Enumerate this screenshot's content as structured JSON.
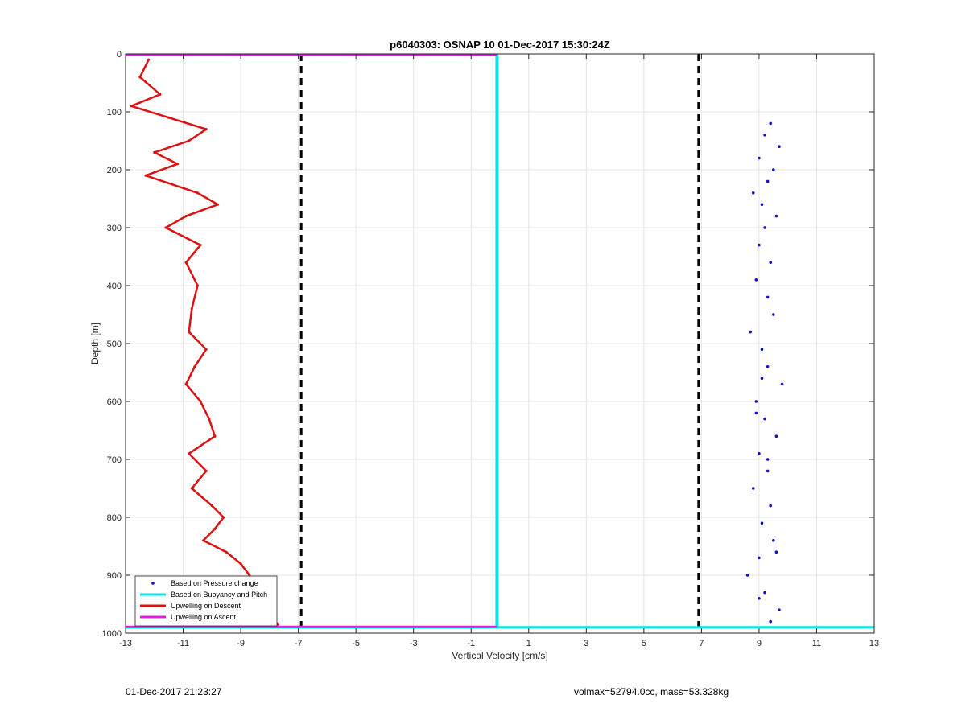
{
  "chart_data": {
    "type": "scatter",
    "title": "p6040303: OSNAP 10 01-Dec-2017 15:30:24Z",
    "xlabel": "Vertical Velocity [cm/s]",
    "ylabel": "Depth [m]",
    "xlim": [
      -13,
      13
    ],
    "ylim": [
      0,
      1000
    ],
    "y_reversed": true,
    "grid": true,
    "x_ticks": [
      "-13",
      "-11",
      "-9",
      "-7",
      "-5",
      "-3",
      "-1",
      "1",
      "3",
      "5",
      "7",
      "9",
      "11",
      "13"
    ],
    "y_ticks": [
      "0",
      "100",
      "200",
      "300",
      "400",
      "500",
      "600",
      "700",
      "800",
      "900",
      "1000"
    ],
    "legend_position": "bottom-left",
    "vertical_lines": [
      -6.9,
      6.9
    ],
    "max_depth": 990,
    "series": [
      {
        "name": "Based on Pressure change",
        "style": "markers",
        "color": "#1010c8",
        "x": [
          9.4,
          9.2,
          9.7,
          9.0,
          9.5,
          9.3,
          8.8,
          9.1,
          9.6,
          9.2,
          9.0,
          9.4,
          8.9,
          9.3,
          9.5,
          8.7,
          9.1,
          9.3,
          9.8,
          8.9,
          9.2,
          9.6,
          9.0,
          9.3,
          8.8,
          9.4,
          9.1,
          9.5,
          9.0,
          8.6,
          9.2,
          9.7,
          9.4,
          9.1,
          8.9,
          9.3,
          9.6,
          9.0
        ],
        "y": [
          120,
          140,
          160,
          180,
          200,
          220,
          240,
          260,
          280,
          300,
          330,
          360,
          390,
          420,
          450,
          480,
          510,
          540,
          570,
          600,
          630,
          660,
          690,
          720,
          750,
          780,
          810,
          840,
          870,
          900,
          930,
          960,
          980,
          560,
          620,
          700,
          860,
          940
        ]
      },
      {
        "name": "Based on Buoyancy and Pitch",
        "style": "line",
        "color": "#00e5e5",
        "x": [
          -0.1,
          -0.1,
          -0.1
        ],
        "y": [
          0,
          500,
          990
        ]
      },
      {
        "name": "Upwelling on Descent",
        "style": "line+markers",
        "color": "#dd1111",
        "x": [
          -12.2,
          -12.5,
          -11.8,
          -12.8,
          -11.5,
          -10.2,
          -10.8,
          -12.0,
          -11.2,
          -12.3,
          -10.5,
          -9.8,
          -10.9,
          -11.6,
          -10.4,
          -10.9,
          -10.5,
          -10.7,
          -10.8,
          -10.2,
          -10.6,
          -10.9,
          -10.4,
          -10.1,
          -9.9,
          -10.8,
          -10.2,
          -10.7,
          -10.0,
          -9.6,
          -9.9,
          -10.3,
          -9.5,
          -9.0,
          -8.7,
          -8.5,
          -8.2,
          -8.0,
          -7.9,
          -7.7
        ],
        "y": [
          10,
          40,
          70,
          90,
          110,
          130,
          150,
          170,
          190,
          210,
          240,
          260,
          280,
          300,
          330,
          360,
          400,
          440,
          480,
          510,
          540,
          570,
          600,
          630,
          660,
          690,
          720,
          750,
          780,
          800,
          820,
          840,
          860,
          880,
          900,
          920,
          940,
          960,
          975,
          985
        ]
      },
      {
        "name": "Upwelling on Ascent",
        "style": "line",
        "color": "#e020e0",
        "x": [
          -13,
          -9,
          -7,
          -0.1
        ],
        "y": [
          2,
          2,
          2,
          2
        ]
      }
    ]
  },
  "footer": {
    "timestamp": "01-Dec-2017 21:23:27",
    "summary": "volmax=52794.0cc, mass=53.328kg"
  }
}
